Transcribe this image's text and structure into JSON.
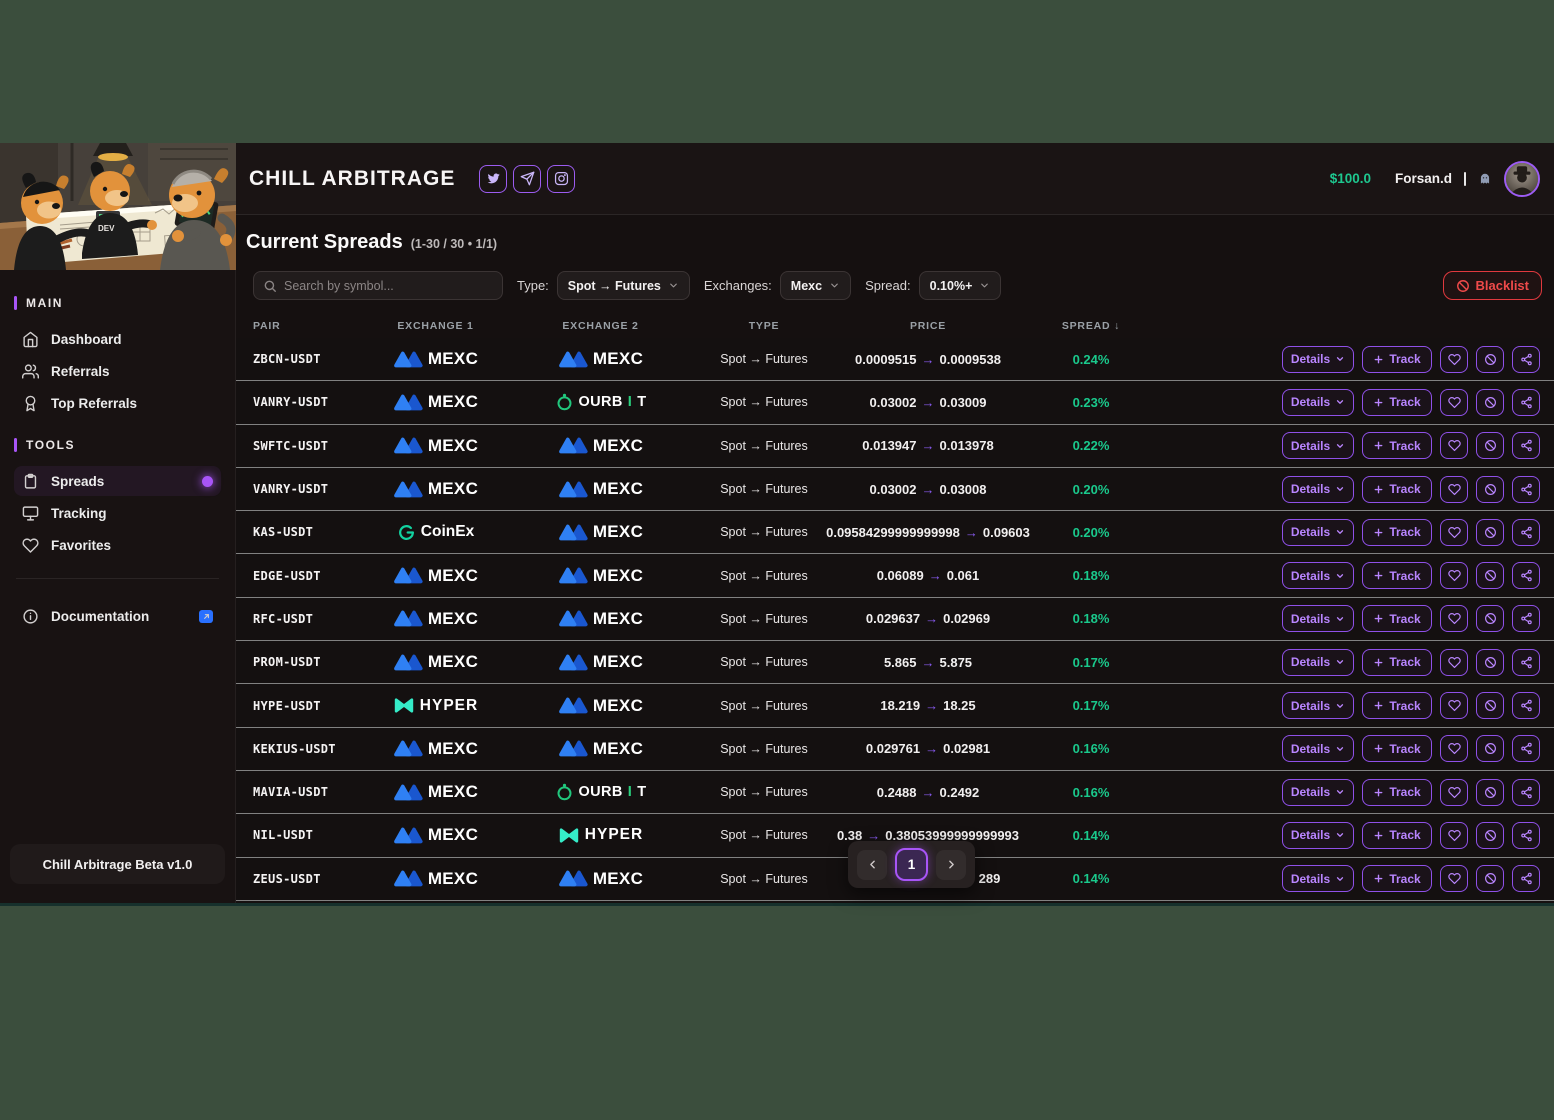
{
  "header": {
    "logo": "CHILL ARBITRAGE",
    "social": [
      {
        "name": "twitter"
      },
      {
        "name": "telegram"
      },
      {
        "name": "instagram"
      }
    ],
    "balance": "$100.0",
    "username": "Forsan.d"
  },
  "sidebar": {
    "sections": [
      {
        "title": "MAIN",
        "items": [
          {
            "label": "Dashboard"
          },
          {
            "label": "Referrals"
          },
          {
            "label": "Top Referrals"
          }
        ]
      },
      {
        "title": "TOOLS",
        "items": [
          {
            "label": "Spreads",
            "active": true
          },
          {
            "label": "Tracking"
          },
          {
            "label": "Favorites"
          }
        ]
      }
    ],
    "documentation_label": "Documentation",
    "footer": "Chill Arbitrage Beta v1.0"
  },
  "title": {
    "text": "Current Spreads",
    "range": "(1-30 / 30 • 1/1)"
  },
  "filters": {
    "search_placeholder": "Search by symbol...",
    "type_label": "Type:",
    "type_value": "Spot → Futures",
    "exchanges_label": "Exchanges:",
    "exchanges_value": "Mexc",
    "spread_label": "Spread:",
    "spread_value": "0.10%+",
    "blacklist_label": "Blacklist"
  },
  "table": {
    "columns": [
      "PAIR",
      "EXCHANGE 1",
      "EXCHANGE 2",
      "TYPE",
      "PRICE",
      "SPREAD"
    ],
    "sort_indicator": "↓",
    "price_arrow": "→",
    "actions": {
      "details": "Details",
      "track": "Track"
    },
    "rows": [
      {
        "pair": "ZBCN-USDT",
        "exchange1": "MEXC",
        "exchange2": "MEXC",
        "type": "Spot → Futures",
        "price_from": "0.0009515",
        "price_to": "0.0009538",
        "spread": "0.24%"
      },
      {
        "pair": "VANRY-USDT",
        "exchange1": "MEXC",
        "exchange2": "OURBIT",
        "type": "Spot → Futures",
        "price_from": "0.03002",
        "price_to": "0.03009",
        "spread": "0.23%"
      },
      {
        "pair": "SWFTC-USDT",
        "exchange1": "MEXC",
        "exchange2": "MEXC",
        "type": "Spot → Futures",
        "price_from": "0.013947",
        "price_to": "0.013978",
        "spread": "0.22%"
      },
      {
        "pair": "VANRY-USDT",
        "exchange1": "MEXC",
        "exchange2": "MEXC",
        "type": "Spot → Futures",
        "price_from": "0.03002",
        "price_to": "0.03008",
        "spread": "0.20%"
      },
      {
        "pair": "KAS-USDT",
        "exchange1": "CoinEx",
        "exchange2": "MEXC",
        "type": "Spot → Futures",
        "price_from": "0.09584299999999998",
        "price_to": "0.09603",
        "spread": "0.20%"
      },
      {
        "pair": "EDGE-USDT",
        "exchange1": "MEXC",
        "exchange2": "MEXC",
        "type": "Spot → Futures",
        "price_from": "0.06089",
        "price_to": "0.061",
        "spread": "0.18%"
      },
      {
        "pair": "RFC-USDT",
        "exchange1": "MEXC",
        "exchange2": "MEXC",
        "type": "Spot → Futures",
        "price_from": "0.029637",
        "price_to": "0.02969",
        "spread": "0.18%"
      },
      {
        "pair": "PROM-USDT",
        "exchange1": "MEXC",
        "exchange2": "MEXC",
        "type": "Spot → Futures",
        "price_from": "5.865",
        "price_to": "5.875",
        "spread": "0.17%"
      },
      {
        "pair": "HYPE-USDT",
        "exchange1": "HYPER",
        "exchange2": "MEXC",
        "type": "Spot → Futures",
        "price_from": "18.219",
        "price_to": "18.25",
        "spread": "0.17%"
      },
      {
        "pair": "KEKIUS-USDT",
        "exchange1": "MEXC",
        "exchange2": "MEXC",
        "type": "Spot → Futures",
        "price_from": "0.029761",
        "price_to": "0.02981",
        "spread": "0.16%"
      },
      {
        "pair": "MAVIA-USDT",
        "exchange1": "MEXC",
        "exchange2": "OURBIT",
        "type": "Spot → Futures",
        "price_from": "0.2488",
        "price_to": "0.2492",
        "spread": "0.16%"
      },
      {
        "pair": "NIL-USDT",
        "exchange1": "MEXC",
        "exchange2": "HYPER",
        "type": "Spot → Futures",
        "price_from": "0.38",
        "price_to": "0.38053999999999993",
        "spread": "0.14%"
      },
      {
        "pair": "ZEUS-USDT",
        "exchange1": "MEXC",
        "exchange2": "MEXC",
        "type": "Spot → Futures",
        "price_from": "",
        "price_to": "289",
        "spread": "0.14%"
      }
    ]
  },
  "pagination": {
    "current": "1"
  },
  "colors": {
    "accent_purple": "#a855f7",
    "spread_green": "#1ac98c",
    "balance_green": "#1ec78f",
    "blacklist_red": "#ef4a4a",
    "mexc_blue": "#2c7bf2",
    "ourbit_green": "#21c77d",
    "coinex_teal": "#12d2a0",
    "hyper_mint": "#35ecc8",
    "page_background": "#3b4e3d"
  }
}
